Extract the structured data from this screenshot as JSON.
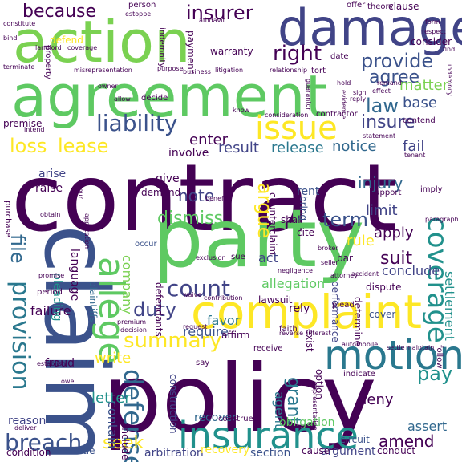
{
  "words": [
    {
      "id": "contract",
      "text": "contract",
      "color": "#440154"
    },
    {
      "id": "policy",
      "text": "policy",
      "color": "#440154"
    },
    {
      "id": "claim",
      "text": "claim",
      "color": "#3b528b"
    },
    {
      "id": "party",
      "text": "party",
      "color": "#5ec962"
    },
    {
      "id": "agreement",
      "text": "agreement",
      "color": "#5ec962"
    },
    {
      "id": "action",
      "text": "action",
      "color": "#7ad151"
    },
    {
      "id": "damage",
      "text": "damage",
      "color": "#414487"
    },
    {
      "id": "complaint",
      "text": "complaint",
      "color": "#fde725"
    },
    {
      "id": "insurance",
      "text": "insurance",
      "color": "#21918c"
    },
    {
      "id": "motion",
      "text": "motion",
      "color": "#2a788e"
    },
    {
      "id": "issue",
      "text": "issue",
      "color": "#fde725"
    },
    {
      "id": "allege",
      "text": "allege",
      "color": "#5ec962"
    },
    {
      "id": "liability",
      "text": "liability",
      "color": "#3b528b"
    },
    {
      "id": "breach",
      "text": "breach",
      "color": "#3b528b"
    },
    {
      "id": "defense",
      "text": "defense",
      "color": "#31688e"
    },
    {
      "id": "coverage",
      "text": "coverage",
      "color": "#21918c"
    },
    {
      "id": "provision",
      "text": "provision",
      "color": "#2a788e"
    },
    {
      "id": "summary",
      "text": "summary",
      "color": "#fde725"
    },
    {
      "id": "lease",
      "text": "lease",
      "color": "#fde725"
    },
    {
      "id": "loss",
      "text": "loss",
      "color": "#fde725"
    },
    {
      "id": "law",
      "text": "law",
      "color": "#31688e"
    },
    {
      "id": "insurer",
      "text": "insurer",
      "color": "#440154"
    },
    {
      "id": "because",
      "text": "because",
      "color": "#440154"
    },
    {
      "id": "right",
      "text": "right",
      "color": "#440154"
    },
    {
      "id": "provide",
      "text": "provide",
      "color": "#3b528b"
    },
    {
      "id": "agree",
      "text": "agree",
      "color": "#3b528b"
    },
    {
      "id": "insure",
      "text": "insure",
      "color": "#414487"
    },
    {
      "id": "matter",
      "text": "matter",
      "color": "#7ad151"
    },
    {
      "id": "base",
      "text": "base",
      "color": "#3b528b"
    },
    {
      "id": "count",
      "text": "count",
      "color": "#414487"
    },
    {
      "id": "duty",
      "text": "duty",
      "color": "#414487"
    },
    {
      "id": "seek",
      "text": "seek",
      "color": "#fde725"
    },
    {
      "id": "amend",
      "text": "amend",
      "color": "#440154"
    },
    {
      "id": "pay",
      "text": "pay",
      "color": "#21918c"
    },
    {
      "id": "grant",
      "text": "grant",
      "color": "#2a788e"
    },
    {
      "id": "term",
      "text": "term",
      "color": "#3b528b"
    },
    {
      "id": "dismiss",
      "text": "dismiss",
      "color": "#5ec962"
    },
    {
      "id": "argue",
      "text": "argue",
      "color": "#fde725"
    },
    {
      "id": "file",
      "text": "file",
      "color": "#31688e"
    },
    {
      "id": "suit",
      "text": "suit",
      "color": "#440154"
    },
    {
      "id": "company",
      "text": "company",
      "color": "#7ad151"
    },
    {
      "id": "allegation",
      "text": "allegation",
      "color": "#5ec962"
    },
    {
      "id": "injury",
      "text": "injury",
      "color": "#31688e"
    },
    {
      "id": "release",
      "text": "release",
      "color": "#2a788e"
    },
    {
      "id": "notice",
      "text": "notice",
      "color": "#31688e"
    },
    {
      "id": "result",
      "text": "result",
      "color": "#414487"
    },
    {
      "id": "enter",
      "text": "enter",
      "color": "#440154"
    },
    {
      "id": "note",
      "text": "note",
      "color": "#414487"
    },
    {
      "id": "apply",
      "text": "apply",
      "color": "#440154"
    },
    {
      "id": "deny",
      "text": "deny",
      "color": "#440154"
    },
    {
      "id": "letter",
      "text": "letter",
      "color": "#21918c"
    },
    {
      "id": "write",
      "text": "write",
      "color": "#fde725"
    },
    {
      "id": "rule",
      "text": "rule",
      "color": "#fde725"
    },
    {
      "id": "fail",
      "text": "fail",
      "color": "#414487"
    },
    {
      "id": "limit",
      "text": "limit",
      "color": "#414487"
    },
    {
      "id": "favor",
      "text": "favor",
      "color": "#2a788e"
    },
    {
      "id": "require",
      "text": "require",
      "color": "#3b528b"
    },
    {
      "id": "contain",
      "text": "contain",
      "color": "#3b528b"
    },
    {
      "id": "agent",
      "text": "agent",
      "color": "#2a788e"
    },
    {
      "id": "assert",
      "text": "assert",
      "color": "#31688e"
    },
    {
      "id": "settlement",
      "text": "settlement",
      "color": "#21918c"
    },
    {
      "id": "conclude",
      "text": "conclude",
      "color": "#414487"
    },
    {
      "id": "act",
      "text": "act",
      "color": "#414487"
    },
    {
      "id": "failure",
      "text": "failure",
      "color": "#440154"
    },
    {
      "id": "raise",
      "text": "raise",
      "color": "#440154"
    },
    {
      "id": "arise",
      "text": "arise",
      "color": "#414487"
    },
    {
      "id": "give",
      "text": "give",
      "color": "#440154"
    },
    {
      "id": "rent",
      "text": "rent",
      "color": "#3b528b"
    },
    {
      "id": "reason",
      "text": "reason",
      "color": "#414487"
    },
    {
      "id": "fraud",
      "text": "fraud",
      "color": "#440154"
    },
    {
      "id": "pleading",
      "text": "pleading",
      "color": "#21918c"
    },
    {
      "id": "language",
      "text": "language",
      "color": "#440154"
    },
    {
      "id": "plaintiffs",
      "text": "plaintiffs",
      "color": "#31688e"
    },
    {
      "id": "defendants",
      "text": "defendants",
      "color": "#440154"
    },
    {
      "id": "purchase",
      "text": "purchase",
      "color": "#440154"
    },
    {
      "id": "include",
      "text": "include",
      "color": "#440154"
    },
    {
      "id": "exist",
      "text": "exist",
      "color": "#440154"
    },
    {
      "id": "option",
      "text": "option",
      "color": "#440154"
    },
    {
      "id": "obligation",
      "text": "obligation",
      "color": "#5ec962"
    },
    {
      "id": "recover",
      "text": "recover",
      "color": "#31688e"
    },
    {
      "id": "arbitration",
      "text": "arbitration",
      "color": "#414487"
    },
    {
      "id": "section",
      "text": "section",
      "color": "#3b528b"
    },
    {
      "id": "argument",
      "text": "argument",
      "color": "#414487"
    },
    {
      "id": "cause",
      "text": "cause",
      "color": "#440154"
    },
    {
      "id": "conduct",
      "text": "conduct",
      "color": "#440154"
    },
    {
      "id": "entitle",
      "text": "entitle",
      "color": "#3b528b"
    },
    {
      "id": "condition",
      "text": "condition",
      "color": "#440154"
    },
    {
      "id": "recovery",
      "text": "recovery",
      "color": "#fde725"
    },
    {
      "id": "construction",
      "text": "construction",
      "color": "#414487"
    },
    {
      "id": "circuit",
      "text": "circuit",
      "color": "#3b528b"
    },
    {
      "id": "performance",
      "text": "performance",
      "color": "#414487"
    },
    {
      "id": "determine",
      "text": "determine",
      "color": "#440154"
    },
    {
      "id": "counterclaim",
      "text": "counterclaim",
      "color": "#440154"
    },
    {
      "id": "cite",
      "text": "cite",
      "color": "#440154"
    },
    {
      "id": "shall",
      "text": "shall",
      "color": "#440154"
    },
    {
      "id": "bring",
      "text": "bring",
      "color": "#3b528b"
    },
    {
      "id": "affirm",
      "text": "affirm",
      "color": "#440154"
    },
    {
      "id": "cover",
      "text": "cover",
      "color": "#3b528b"
    },
    {
      "id": "rely",
      "text": "rely",
      "color": "#440154"
    },
    {
      "id": "dispute",
      "text": "dispute",
      "color": "#440154"
    },
    {
      "id": "bar",
      "text": "bar",
      "color": "#440154"
    },
    {
      "id": "lawsuit",
      "text": "lawsuit",
      "color": "#440154"
    },
    {
      "id": "occur",
      "text": "occur",
      "color": "#3b528b"
    },
    {
      "id": "demand",
      "text": "demand",
      "color": "#440154"
    },
    {
      "id": "warranty",
      "text": "warranty",
      "color": "#440154"
    },
    {
      "id": "payment",
      "text": "payment",
      "color": "#440154"
    },
    {
      "id": "indemnity",
      "text": "indemnity",
      "color": "#440154"
    },
    {
      "id": "consider",
      "text": "consider",
      "color": "#440154"
    },
    {
      "id": "clause",
      "text": "clause",
      "color": "#440154"
    },
    {
      "id": "tort",
      "text": "tort",
      "color": "#440154"
    },
    {
      "id": "defend",
      "text": "defend",
      "color": "#fde725"
    },
    {
      "id": "property",
      "text": "property",
      "color": "#440154"
    },
    {
      "id": "person",
      "text": "person",
      "color": "#440154"
    },
    {
      "id": "offer",
      "text": "offer",
      "color": "#440154"
    },
    {
      "id": "theory",
      "text": "theory",
      "color": "#440154"
    },
    {
      "id": "estoppel",
      "text": "estoppel",
      "color": "#440154"
    },
    {
      "id": "affidavit",
      "text": "affidavit",
      "color": "#440154"
    },
    {
      "id": "constitute",
      "text": "constitute",
      "color": "#440154"
    },
    {
      "id": "landlord",
      "text": "landlord",
      "color": "#440154"
    },
    {
      "id": "coverage_small",
      "text": "coverage",
      "color": "#440154"
    },
    {
      "id": "terminate",
      "text": "terminate",
      "color": "#440154"
    },
    {
      "id": "misrepresentation",
      "text": "misrepresentation",
      "color": "#440154"
    },
    {
      "id": "litigation",
      "text": "litigation",
      "color": "#440154"
    },
    {
      "id": "relationship",
      "text": "relationship",
      "color": "#440154"
    },
    {
      "id": "business",
      "text": "business",
      "color": "#440154"
    },
    {
      "id": "purpose",
      "text": "purpose",
      "color": "#440154"
    },
    {
      "id": "date",
      "text": "date",
      "color": "#440154"
    },
    {
      "id": "form",
      "text": "form",
      "color": "#440154"
    },
    {
      "id": "respect",
      "text": "respect",
      "color": "#440154"
    },
    {
      "id": "find",
      "text": "find",
      "color": "#440154"
    },
    {
      "id": "bind",
      "text": "bind",
      "color": "#440154"
    },
    {
      "id": "premise",
      "text": "premise",
      "color": "#440154"
    },
    {
      "id": "contractor",
      "text": "contractor",
      "color": "#440154"
    },
    {
      "id": "consideration",
      "text": "consideration",
      "color": "#440154"
    },
    {
      "id": "statement",
      "text": "statement",
      "color": "#440154"
    },
    {
      "id": "contend",
      "text": "contend",
      "color": "#440154"
    },
    {
      "id": "remand",
      "text": "remand",
      "color": "#440154"
    },
    {
      "id": "effect",
      "text": "effect",
      "color": "#440154"
    },
    {
      "id": "indemnify",
      "text": "indemnify",
      "color": "#440154"
    },
    {
      "id": "tenant",
      "text": "tenant",
      "color": "#440154"
    },
    {
      "id": "involve",
      "text": "involve",
      "color": "#440154"
    },
    {
      "id": "support",
      "text": "support",
      "color": "#440154"
    },
    {
      "id": "imply",
      "text": "imply",
      "color": "#440154"
    },
    {
      "id": "benefit",
      "text": "benefit",
      "color": "#440154"
    },
    {
      "id": "paragraph",
      "text": "paragraph",
      "color": "#440154"
    },
    {
      "id": "broker",
      "text": "broker",
      "color": "#440154"
    },
    {
      "id": "seller",
      "text": "seller",
      "color": "#440154"
    },
    {
      "id": "attorney",
      "text": "attorney",
      "color": "#440154"
    },
    {
      "id": "exclusion",
      "text": "exclusion",
      "color": "#440154"
    },
    {
      "id": "negligence",
      "text": "negligence",
      "color": "#440154"
    },
    {
      "id": "accident",
      "text": "accident",
      "color": "#440154"
    },
    {
      "id": "plead",
      "text": "plead",
      "color": "#440154"
    },
    {
      "id": "contribution",
      "text": "contribution",
      "color": "#440154"
    },
    {
      "id": "waive",
      "text": "waive",
      "color": "#440154"
    },
    {
      "id": "sue",
      "text": "sue",
      "color": "#440154"
    },
    {
      "id": "premium",
      "text": "premium",
      "color": "#440154"
    },
    {
      "id": "decision",
      "text": "decision",
      "color": "#440154"
    },
    {
      "id": "request",
      "text": "request",
      "color": "#440154"
    },
    {
      "id": "faith",
      "text": "faith",
      "color": "#440154"
    },
    {
      "id": "interest",
      "text": "interest",
      "color": "#440154"
    },
    {
      "id": "reverse",
      "text": "reverse",
      "color": "#440154"
    },
    {
      "id": "automobile",
      "text": "automobile",
      "color": "#440154"
    },
    {
      "id": "settle",
      "text": "settle",
      "color": "#440154"
    },
    {
      "id": "maintain",
      "text": "maintain",
      "color": "#440154"
    },
    {
      "id": "follow",
      "text": "follow",
      "color": "#440154"
    },
    {
      "id": "establish",
      "text": "establish",
      "color": "#440154"
    },
    {
      "id": "representation",
      "text": "representation",
      "color": "#440154"
    },
    {
      "id": "indicate",
      "text": "indicate",
      "color": "#440154"
    },
    {
      "id": "receive",
      "text": "receive",
      "color": "#440154"
    },
    {
      "id": "owe",
      "text": "owe",
      "color": "#440154"
    },
    {
      "id": "deliver",
      "text": "deliver",
      "color": "#440154"
    },
    {
      "id": "construe",
      "text": "construe",
      "color": "#440154"
    },
    {
      "id": "period",
      "text": "period",
      "color": "#440154"
    },
    {
      "id": "promise",
      "text": "promise",
      "color": "#440154"
    },
    {
      "id": "obtain",
      "text": "obtain",
      "color": "#440154"
    },
    {
      "id": "application",
      "text": "application",
      "color": "#440154"
    },
    {
      "id": "say",
      "text": "say",
      "color": "#440154"
    },
    {
      "id": "allow",
      "text": "allow",
      "color": "#440154"
    },
    {
      "id": "decide",
      "text": "decide",
      "color": "#440154"
    },
    {
      "id": "owner",
      "text": "owner",
      "color": "#440154"
    },
    {
      "id": "intend",
      "text": "intend",
      "color": "#440154"
    },
    {
      "id": "evidence",
      "text": "evidence",
      "color": "#440154"
    },
    {
      "id": "sign",
      "text": "sign",
      "color": "#440154"
    },
    {
      "id": "know",
      "text": "know",
      "color": "#440154"
    },
    {
      "id": "your",
      "text": "your",
      "color": "#440154"
    },
    {
      "id": "hold",
      "text": "hold",
      "color": "#440154"
    },
    {
      "id": "guarantor",
      "text": "guarantor",
      "color": "#440154"
    },
    {
      "id": "reply",
      "text": "reply",
      "color": "#440154"
    }
  ]
}
